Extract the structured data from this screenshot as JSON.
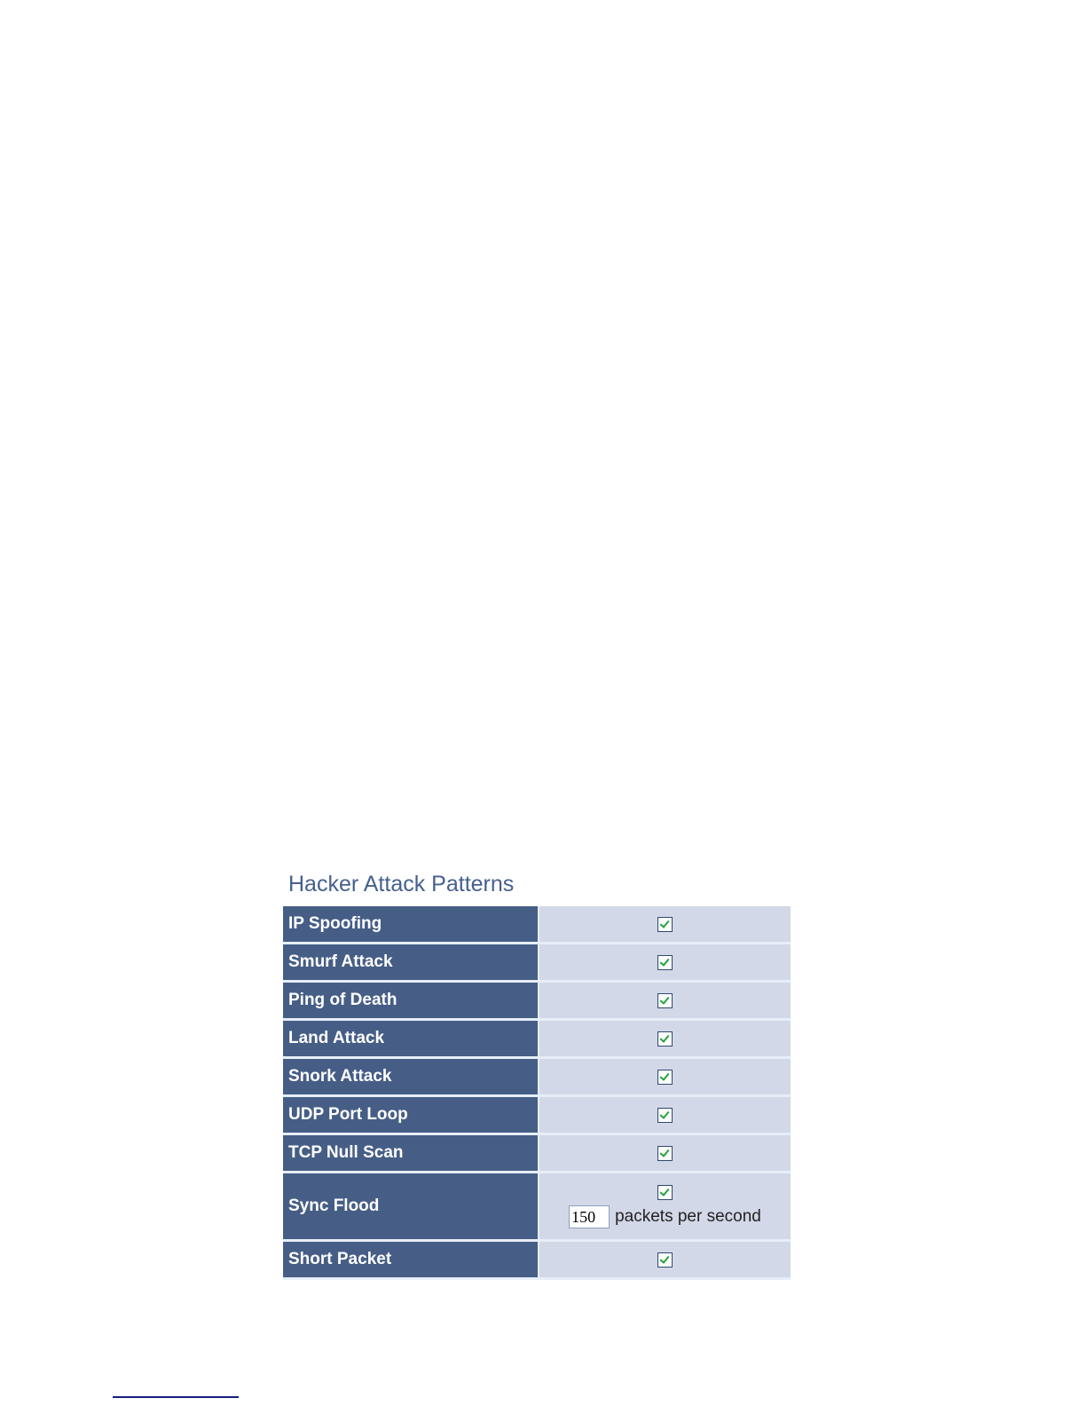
{
  "title": "Hacker Attack Patterns",
  "rows": [
    {
      "label": "IP  Spoofing",
      "checked": true
    },
    {
      "label": "Smurf Attack",
      "checked": true
    },
    {
      "label": "Ping of Death",
      "checked": true
    },
    {
      "label": "Land Attack",
      "checked": true
    },
    {
      "label": "Snork Attack",
      "checked": true
    },
    {
      "label": "UDP Port Loop",
      "checked": true
    },
    {
      "label": "TCP Null Scan",
      "checked": true
    },
    {
      "label": "Sync Flood",
      "checked": true,
      "rate_value": "150",
      "rate_unit": "packets per second"
    },
    {
      "label": "Short Packet",
      "checked": true
    }
  ],
  "colors": {
    "label_bg": "#465e86",
    "value_bg": "#d3d8e8",
    "title": "#46608f",
    "check": "#22a43a"
  }
}
